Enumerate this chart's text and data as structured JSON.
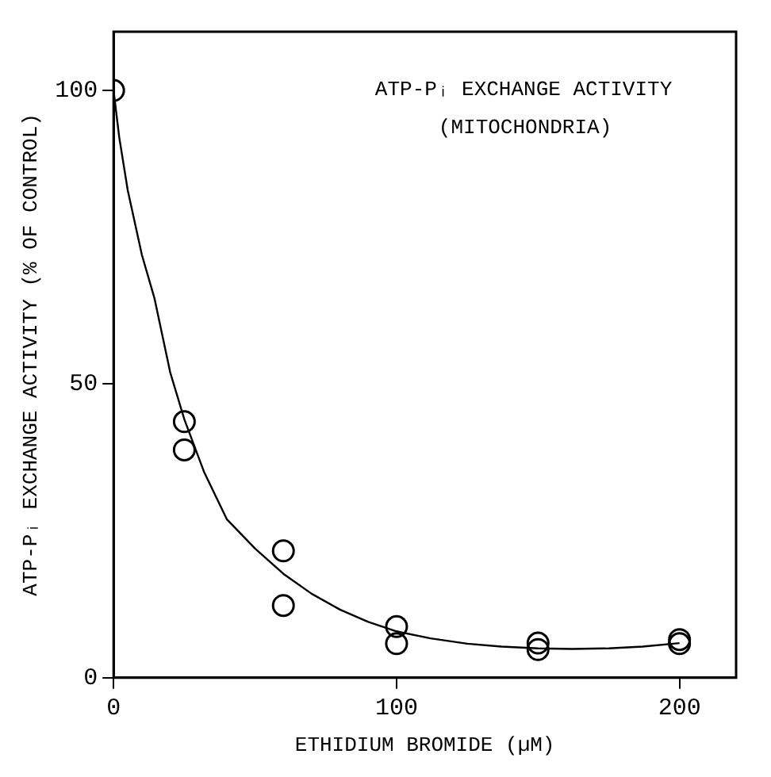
{
  "chart_data": {
    "type": "scatter",
    "xlabel": "ETHIDIUM BROMIDE (µM)",
    "ylabel": "ATP-Pᵢ EXCHANGE ACTIVITY (% OF CONTROL)",
    "annotations": [
      "ATP-Pᵢ EXCHANGE ACTIVITY",
      "(MITOCHONDRIA)"
    ],
    "xlim": [
      0,
      220
    ],
    "xticks": [
      0,
      100,
      200
    ],
    "ylim": [
      0,
      110
    ],
    "yticks": [
      0,
      50,
      100
    ],
    "grid": false,
    "legend": false,
    "marker": "circle",
    "series": [
      {
        "color": "#000000",
        "x": [
          0,
          25,
          25,
          60,
          60,
          100,
          100,
          150,
          150,
          200,
          200
        ],
        "values": [
          100,
          43.6,
          38.8,
          21.6,
          12.3,
          8.7,
          5.8,
          5.9,
          4.8,
          6.5,
          5.8
        ]
      },
      {
        "type": "line",
        "color": "#000000",
        "marker": "none",
        "line_style": "solid",
        "x": [
          0,
          2,
          5,
          10,
          14.4,
          20,
          25,
          32,
          40,
          50,
          60,
          70,
          80,
          90,
          100,
          112,
          125,
          137,
          150,
          162,
          175,
          187,
          200
        ],
        "values": [
          100,
          92,
          83,
          72,
          64.7,
          52,
          44,
          35,
          27,
          22,
          17.7,
          14.3,
          11.6,
          9.5,
          7.9,
          6.7,
          5.8,
          5.3,
          5,
          4.9,
          5,
          5.3,
          5.9
        ]
      }
    ]
  }
}
